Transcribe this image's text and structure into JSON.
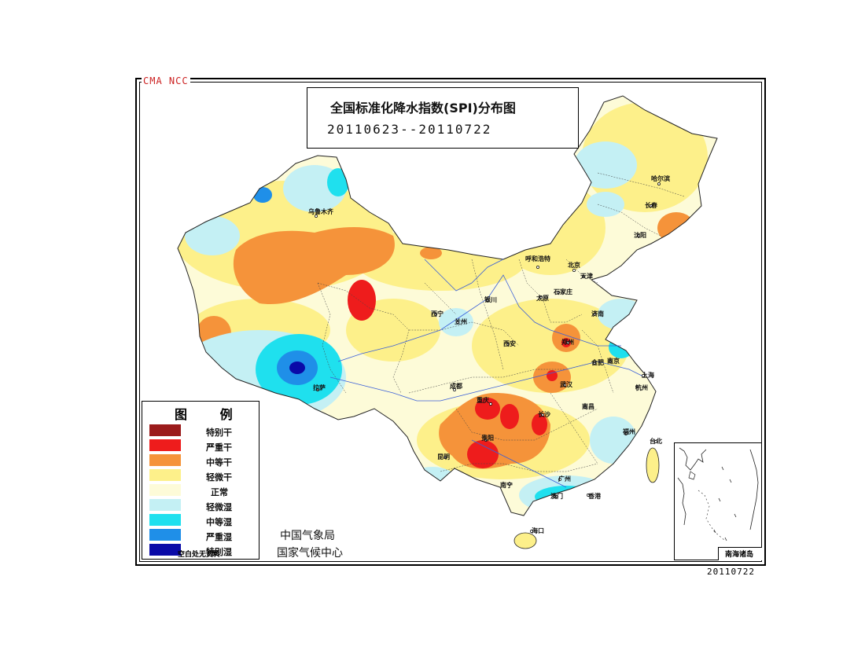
{
  "corner_tag": "CMA NCC",
  "title": {
    "main": "全国标准化降水指数(SPI)分布图",
    "period": "20110623--20110722"
  },
  "legend": {
    "title": "图 例",
    "items": [
      {
        "label": "特别干",
        "color": "#9b1b1b"
      },
      {
        "label": "严重干",
        "color": "#ee1c1c"
      },
      {
        "label": "中等干",
        "color": "#f5933a"
      },
      {
        "label": "轻微干",
        "color": "#fdf08a"
      },
      {
        "label": "正常",
        "color": "#fdfbd8"
      },
      {
        "label": "轻微湿",
        "color": "#c4f0f4"
      },
      {
        "label": "中等湿",
        "color": "#1fe0ee"
      },
      {
        "label": "严重湿",
        "color": "#1f8fe8"
      },
      {
        "label": "特别湿",
        "color": "#0a0aa8"
      }
    ],
    "note": "空白处无资料"
  },
  "agency": {
    "line1": "中国气象局",
    "line2": "国家气候中心"
  },
  "inset": {
    "label": "南海诸岛"
  },
  "footer_date": "20110722",
  "cities": [
    {
      "name": "乌鲁木齐"
    },
    {
      "name": "哈尔滨"
    },
    {
      "name": "长春"
    },
    {
      "name": "沈阳"
    },
    {
      "name": "呼和浩特"
    },
    {
      "name": "北京"
    },
    {
      "name": "天津"
    },
    {
      "name": "太原"
    },
    {
      "name": "石家庄"
    },
    {
      "name": "银川"
    },
    {
      "name": "西宁"
    },
    {
      "name": "兰州"
    },
    {
      "name": "济南"
    },
    {
      "name": "郑州"
    },
    {
      "name": "西安"
    },
    {
      "name": "合肥"
    },
    {
      "name": "南京"
    },
    {
      "name": "上海"
    },
    {
      "name": "杭州"
    },
    {
      "name": "武汉"
    },
    {
      "name": "成都"
    },
    {
      "name": "重庆"
    },
    {
      "name": "长沙"
    },
    {
      "name": "南昌"
    },
    {
      "name": "拉萨"
    },
    {
      "name": "贵阳"
    },
    {
      "name": "福州"
    },
    {
      "name": "台北"
    },
    {
      "name": "昆明"
    },
    {
      "name": "南宁"
    },
    {
      "name": "广州"
    },
    {
      "name": "澳门"
    },
    {
      "name": "香港"
    },
    {
      "name": "海口"
    }
  ]
}
